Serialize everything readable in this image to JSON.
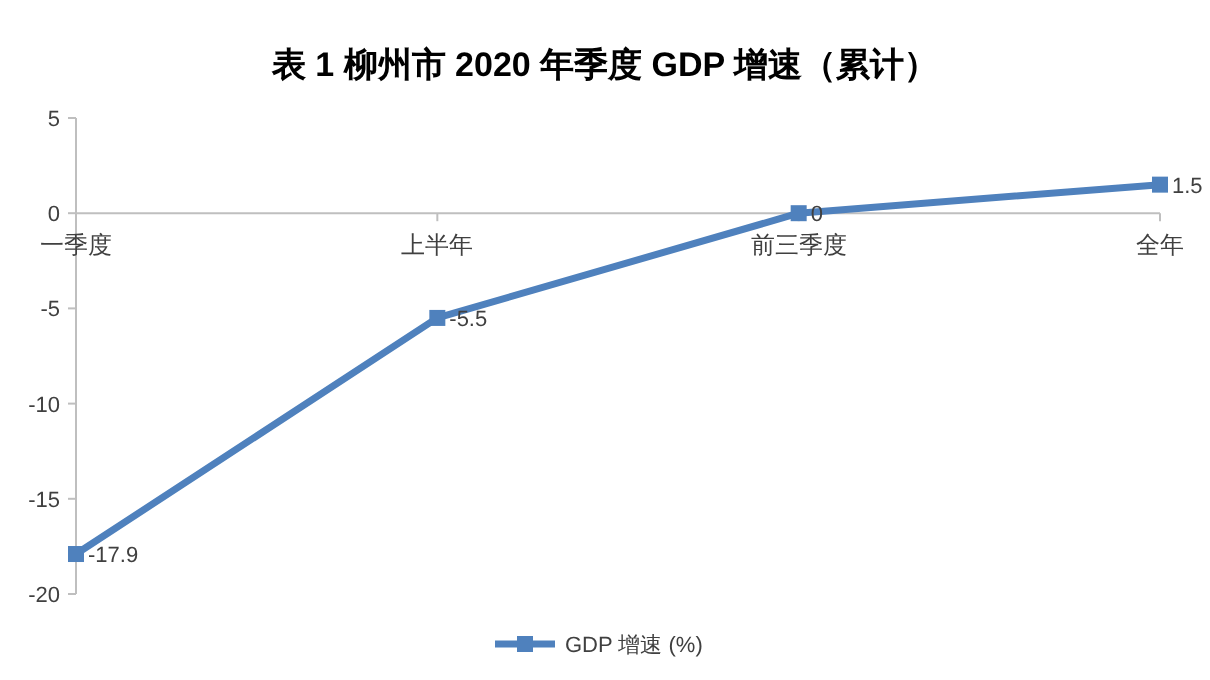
{
  "chart_data": {
    "type": "line",
    "title": "表 1  柳州市 2020 年季度 GDP 增速（累计）",
    "categories": [
      "一季度",
      "上半年",
      "前三季度",
      "全年"
    ],
    "series": [
      {
        "name": "GDP 增速 (%)",
        "color": "#4f81bd",
        "values": [
          -17.9,
          -5.5,
          0,
          1.5
        ]
      }
    ],
    "ylim": [
      -20,
      5
    ],
    "yticks": [
      -20,
      -15,
      -10,
      -5,
      0,
      5
    ],
    "data_labels": true,
    "marker": "square",
    "legend": "bottom",
    "grid": false
  }
}
